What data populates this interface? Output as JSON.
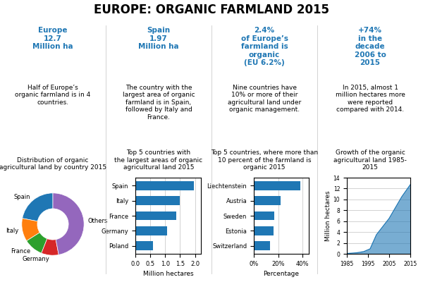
{
  "title": "EUROPE: ORGANIC FARMLAND 2015",
  "annotations": [
    [
      "Europe",
      "12.7",
      "Million ha",
      "Half of Europe’s\norganic farmland is in 4\ncountries."
    ],
    [
      "Spain",
      "1.97",
      "Million ha",
      "The country with the\nlargest area of organic\nfarmland is in Spain,\nfollowed by Italy and\nFrance."
    ],
    [
      "2.4%",
      "of Europe’s\nfarmland is\norganic\n(EU 6.2%)",
      "Nine countries have\n10% or more of their\nagricultural land under\norganic management."
    ],
    [
      "+74%",
      "in the\ndecade\n2006 to\n2015",
      "In 2015, almost 1\nmillion hectares more\nwere reported\ncompared with 2014."
    ]
  ],
  "chart_data": [
    {
      "type": "pie",
      "title": "Distribution of organic\nagricultural land by country 2015",
      "categories": [
        "Spain",
        "Italy",
        "France",
        "Germany",
        "Others"
      ],
      "values": [
        22,
        12,
        10,
        9,
        47
      ]
    },
    {
      "type": "bar",
      "orientation": "horizontal",
      "title": "Top 5 countries with\nthe largest areas of organic\nagricultural land 2015",
      "categories": [
        "Spain",
        "Italy",
        "France",
        "Germany",
        "Poland"
      ],
      "values": [
        1.97,
        1.49,
        1.37,
        1.06,
        0.58
      ],
      "xlabel": "Million hectares",
      "xlim": [
        0,
        2.2
      ],
      "xticks": [
        {
          "value": 0,
          "label": "0.0"
        },
        0.5,
        {
          "value": 1,
          "label": "1.0"
        },
        1.5,
        {
          "value": 2,
          "label": "2.0"
        }
      ],
      "grid": true
    },
    {
      "type": "bar",
      "orientation": "horizontal",
      "title": "Top 5 countries, where more than\n10 percent of the farmland is\norganic 2015",
      "categories": [
        "Liechtenstein",
        "Austria",
        "Sweden",
        "Estonia",
        "Switzerland"
      ],
      "values": [
        38,
        22,
        17,
        16,
        13
      ],
      "xlabel": "Percentage",
      "xlim": [
        0,
        45
      ],
      "xticks": [
        {
          "value": 0,
          "label": "0%"
        },
        {
          "value": 20,
          "label": "20%"
        },
        {
          "value": 40,
          "label": "40%"
        }
      ],
      "grid": true
    },
    {
      "type": "area",
      "title": "Growth of the organic\nagricultural land 1985-\n2015",
      "x": [
        1985,
        1987,
        1990,
        1993,
        1996,
        1999,
        2002,
        2005,
        2008,
        2011,
        2015
      ],
      "values": [
        0.05,
        0.1,
        0.2,
        0.4,
        0.9,
        3.5,
        5.0,
        6.5,
        8.5,
        10.5,
        12.7
      ],
      "ylabel": "Million hectares",
      "xlim": [
        1985,
        2015
      ],
      "xticks": [
        1985,
        1995,
        2005,
        2015
      ],
      "ylim": [
        0,
        14
      ],
      "yticks": [
        0,
        2,
        4,
        6,
        8,
        10,
        12,
        14
      ],
      "grid": true
    }
  ]
}
